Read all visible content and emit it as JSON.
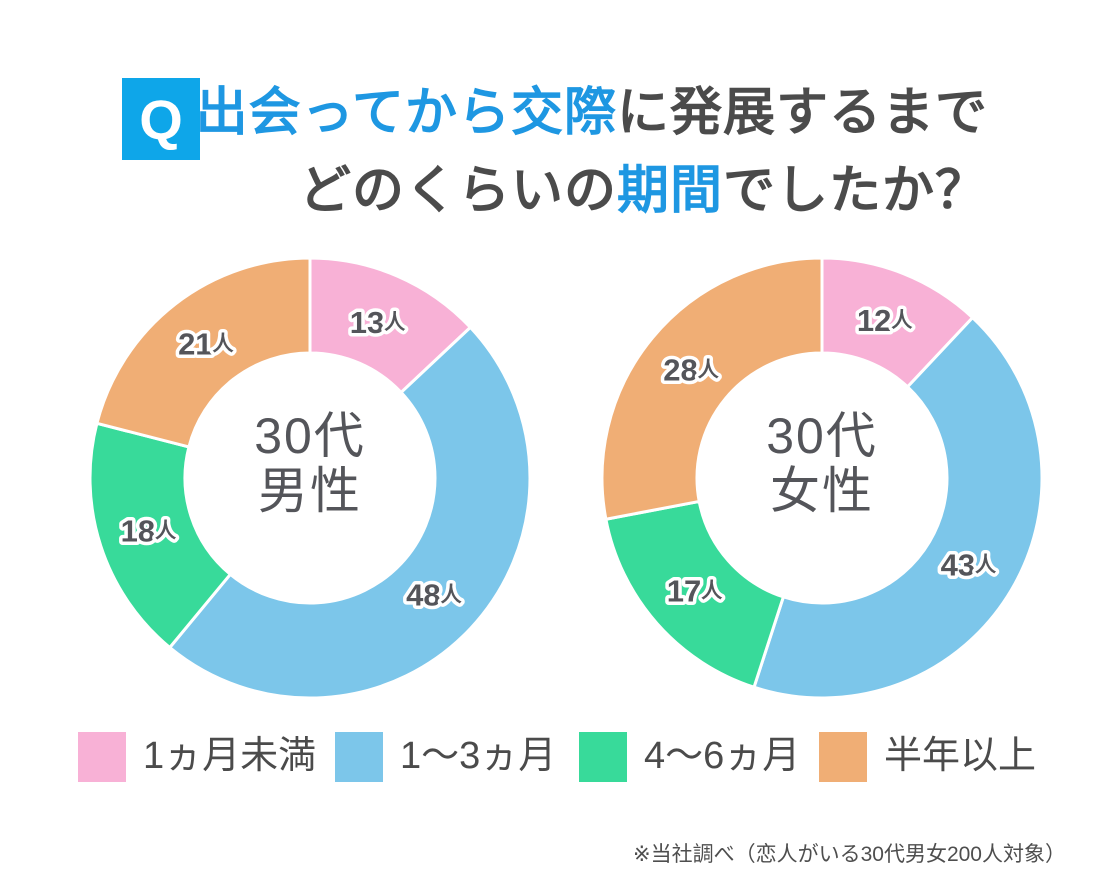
{
  "header": {
    "badge": "Q",
    "title_line1": [
      {
        "text": "出会ってから交際",
        "color": "blue"
      },
      {
        "text": "に発展するまで",
        "color": "dark"
      }
    ],
    "title_line2": [
      {
        "text": "どのくらいの",
        "color": "dark"
      },
      {
        "text": "期間",
        "color": "blue"
      },
      {
        "text": "でしたか？",
        "color": "dark"
      }
    ]
  },
  "colors": {
    "badge_blue": "#0ea6e9",
    "title_blue": "#1e97e2",
    "dark_text": "#4b4b4b",
    "label_gray": "#54555a",
    "pink": "#f8b1d6",
    "blue": "#7cc6ea",
    "green": "#38da9a",
    "orange": "#f0ae75"
  },
  "chart_data": [
    {
      "type": "donut",
      "title": "30代男性",
      "center_label": [
        "30代",
        "男性"
      ],
      "categories": [
        "1ヵ月未満",
        "1〜3ヵ月",
        "4〜6ヵ月",
        "半年以上"
      ],
      "values": [
        13,
        48,
        18,
        21
      ],
      "total": 100,
      "unit": "人",
      "colors": [
        "#f8b1d6",
        "#7cc6ea",
        "#38da9a",
        "#f0ae75"
      ],
      "start_angle_deg": 0,
      "direction": "clockwise"
    },
    {
      "type": "donut",
      "title": "30代女性",
      "center_label": [
        "30代",
        "女性"
      ],
      "categories": [
        "1ヵ月未満",
        "1〜3ヵ月",
        "4〜6ヵ月",
        "半年以上"
      ],
      "values": [
        12,
        43,
        17,
        28
      ],
      "total": 100,
      "unit": "人",
      "colors": [
        "#f8b1d6",
        "#7cc6ea",
        "#38da9a",
        "#f0ae75"
      ],
      "start_angle_deg": 0,
      "direction": "clockwise"
    }
  ],
  "legend": {
    "items": [
      {
        "label": "1ヵ月未満",
        "color": "#f8b1d6"
      },
      {
        "label": "1〜3ヵ月",
        "color": "#7cc6ea"
      },
      {
        "label": "4〜6ヵ月",
        "color": "#38da9a"
      },
      {
        "label": "半年以上",
        "color": "#f0ae75"
      }
    ]
  },
  "footer": {
    "note": "※当社調べ（恋人がいる30代男女200人対象）"
  }
}
